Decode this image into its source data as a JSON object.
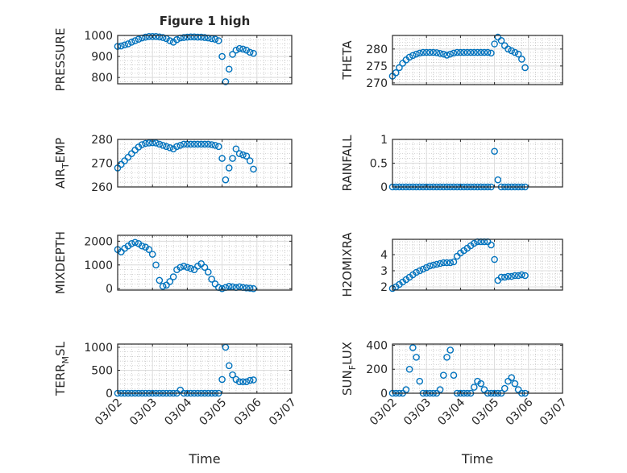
{
  "figure": {
    "title": "Figure 1 high",
    "marker_color": "#0072BD"
  },
  "chart_data": {
    "type": "scatter",
    "x_unit": "days since 03/02",
    "xlim": [
      0,
      5
    ],
    "x_ticks": [
      0,
      1,
      2,
      3,
      4,
      5
    ],
    "x_tick_labels": [
      "03/02",
      "03/03",
      "03/04",
      "03/05",
      "03/06",
      "03/07"
    ],
    "xlabel": "Time",
    "x": [
      0,
      0.1,
      0.2,
      0.3,
      0.4,
      0.5,
      0.6,
      0.7,
      0.8,
      0.9,
      1.0,
      1.1,
      1.2,
      1.3,
      1.4,
      1.5,
      1.6,
      1.7,
      1.8,
      1.9,
      2.0,
      2.1,
      2.2,
      2.3,
      2.4,
      2.5,
      2.6,
      2.7,
      2.8,
      2.9,
      3.0,
      3.1,
      3.2,
      3.3,
      3.4,
      3.5,
      3.6,
      3.7,
      3.8,
      3.9
    ],
    "grid": "on (major and minor)",
    "subplots": [
      {
        "ylabel": "PRESSURE",
        "ylim": [
          770,
          1000
        ],
        "yticks": [
          800,
          900,
          1000
        ],
        "values": [
          948,
          950,
          955,
          960,
          968,
          975,
          982,
          988,
          992,
          995,
          995,
          995,
          993,
          990,
          985,
          975,
          968,
          980,
          988,
          990,
          992,
          993,
          993,
          992,
          992,
          990,
          988,
          985,
          982,
          975,
          900,
          780,
          840,
          910,
          930,
          938,
          935,
          930,
          920,
          915
        ]
      },
      {
        "ylabel": "THETA",
        "ylim": [
          269.5,
          284
        ],
        "yticks": [
          270,
          275,
          280
        ],
        "values": [
          272,
          273,
          274.5,
          275.8,
          276.8,
          277.6,
          278.1,
          278.5,
          278.8,
          279,
          279,
          279,
          279,
          278.9,
          278.7,
          278.5,
          278.2,
          278.5,
          278.8,
          279,
          279,
          279,
          279,
          279,
          279,
          279,
          279,
          279,
          279,
          278.8,
          281.5,
          283.5,
          282.5,
          281,
          280,
          279.5,
          279,
          278.5,
          277,
          274.5
        ]
      },
      {
        "ylabel": "AIR_TEMP",
        "ylim": [
          260,
          280
        ],
        "yticks": [
          260,
          270,
          280
        ],
        "values": [
          268,
          269.5,
          271,
          272.5,
          274,
          275.5,
          276.8,
          277.8,
          278.3,
          278.5,
          278.6,
          278.5,
          278,
          277.5,
          277,
          276.5,
          276,
          277,
          277.5,
          278,
          278,
          278,
          278,
          278,
          278,
          278,
          278,
          277.8,
          277.5,
          277,
          272,
          263,
          268,
          272,
          276,
          274,
          273.5,
          273,
          271,
          267.5
        ]
      },
      {
        "ylabel": "RAINFALL",
        "ylim": [
          0,
          1
        ],
        "yticks": [
          0,
          0.5,
          1
        ],
        "values": [
          0,
          0,
          0,
          0,
          0,
          0,
          0,
          0,
          0,
          0,
          0,
          0,
          0,
          0,
          0,
          0,
          0,
          0,
          0,
          0,
          0,
          0,
          0,
          0,
          0,
          0,
          0,
          0,
          0,
          0,
          0.75,
          0.15,
          0,
          0,
          0,
          0,
          0,
          0,
          0,
          0
        ]
      },
      {
        "ylabel": "MIXDEPTH",
        "ylim": [
          -60,
          2250
        ],
        "yticks": [
          0,
          1000,
          2000
        ],
        "values": [
          1650,
          1550,
          1700,
          1800,
          1900,
          1950,
          1900,
          1800,
          1750,
          1650,
          1450,
          1000,
          350,
          100,
          150,
          300,
          500,
          800,
          900,
          950,
          900,
          850,
          800,
          950,
          1050,
          900,
          700,
          400,
          200,
          50,
          0,
          50,
          100,
          80,
          50,
          80,
          50,
          30,
          20,
          0
        ]
      },
      {
        "ylabel": "H2OMIXRA",
        "ylim": [
          1.8,
          4.95
        ],
        "yticks": [
          2,
          3,
          4
        ],
        "values": [
          1.9,
          2.0,
          2.15,
          2.3,
          2.45,
          2.6,
          2.75,
          2.9,
          3.0,
          3.1,
          3.2,
          3.3,
          3.35,
          3.4,
          3.45,
          3.5,
          3.5,
          3.5,
          3.55,
          3.9,
          4.1,
          4.25,
          4.4,
          4.55,
          4.7,
          4.8,
          4.8,
          4.8,
          4.8,
          4.6,
          3.7,
          2.4,
          2.6,
          2.6,
          2.65,
          2.65,
          2.7,
          2.7,
          2.75,
          2.7
        ]
      },
      {
        "ylabel": "TERR_MSL",
        "ylim": [
          0,
          1070
        ],
        "yticks": [
          0,
          500,
          1000
        ],
        "values": [
          0,
          0,
          0,
          0,
          0,
          0,
          0,
          0,
          0,
          0,
          0,
          0,
          0,
          0,
          0,
          0,
          0,
          0,
          70,
          0,
          0,
          0,
          0,
          0,
          0,
          0,
          0,
          0,
          0,
          0,
          300,
          1000,
          600,
          400,
          300,
          250,
          250,
          250,
          280,
          290
        ]
      },
      {
        "ylabel": "SUN_FLUX",
        "ylim": [
          0,
          410
        ],
        "yticks": [
          0,
          200,
          400
        ],
        "values": [
          0,
          0,
          0,
          0,
          30,
          200,
          380,
          300,
          100,
          0,
          0,
          0,
          0,
          0,
          30,
          150,
          300,
          360,
          150,
          0,
          0,
          0,
          0,
          0,
          50,
          100,
          80,
          30,
          0,
          0,
          0,
          0,
          0,
          40,
          100,
          130,
          80,
          30,
          0,
          0
        ]
      }
    ]
  }
}
